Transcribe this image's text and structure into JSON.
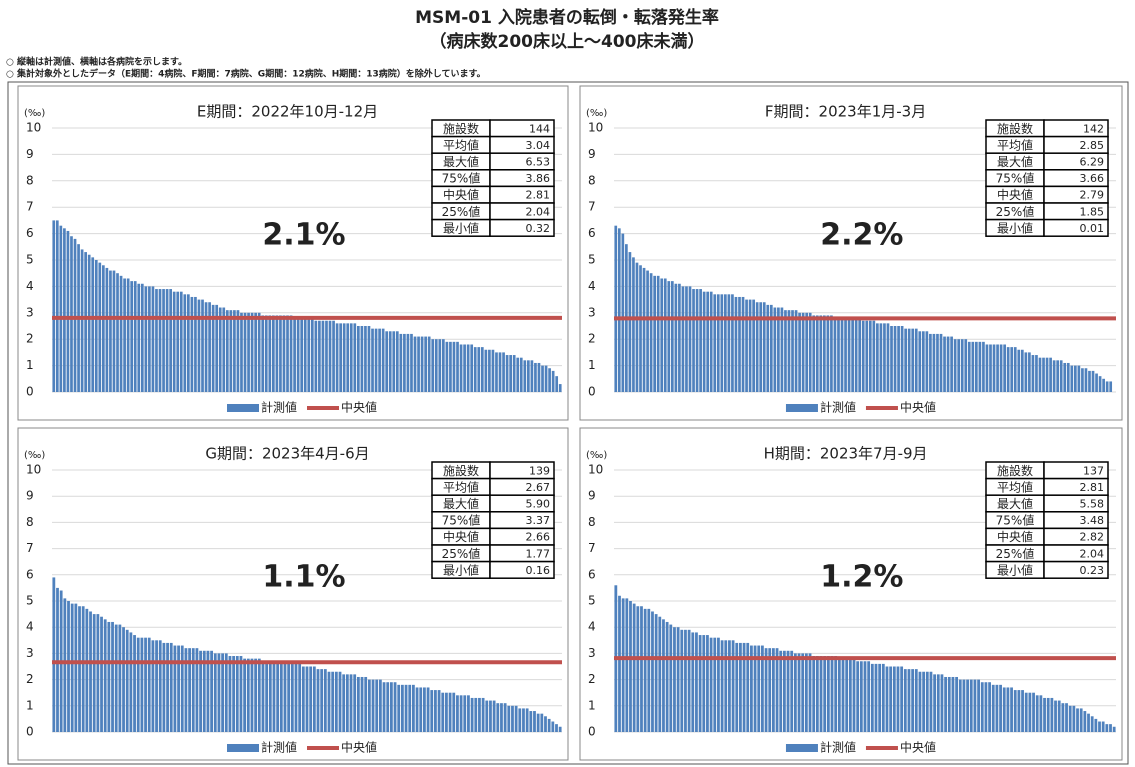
{
  "title": "MSM-01 入院患者の転倒・転落発生率",
  "subtitle": "（病床数200床以上～400床未満）",
  "notes": [
    "○ 縦軸は計測値、横軸は各病院を示します。",
    "○ 集計対象外としたデータ（E期間：4病院、F期間：7病院、G期間：12病院、H期間：13病院）を除外しています。"
  ],
  "chart_data": [
    {
      "type": "bar",
      "title": "E期間：2022年10月-12月",
      "unit": "(‰)",
      "annotation": "2.1%",
      "ylim": [
        0,
        10
      ],
      "yticks": [
        0,
        1,
        2,
        3,
        4,
        5,
        6,
        7,
        8,
        9,
        10
      ],
      "grid": true,
      "stats": [
        {
          "label": "施設数",
          "value": "144"
        },
        {
          "label": "平均値",
          "value": "3.04"
        },
        {
          "label": "最大値",
          "value": "6.53"
        },
        {
          "label": "75%値",
          "value": "3.86"
        },
        {
          "label": "中央値",
          "value": "2.81"
        },
        {
          "label": "25%値",
          "value": "2.04"
        },
        {
          "label": "最小値",
          "value": "0.32"
        }
      ],
      "series": [
        {
          "name": "計測値",
          "color": "#4f81bd",
          "values": [
            6.5,
            6.5,
            6.3,
            6.2,
            6.1,
            5.9,
            5.8,
            5.6,
            5.4,
            5.3,
            5.2,
            5.1,
            5.0,
            4.9,
            4.8,
            4.7,
            4.6,
            4.6,
            4.5,
            4.4,
            4.3,
            4.3,
            4.2,
            4.2,
            4.1,
            4.1,
            4.0,
            4.0,
            4.0,
            3.9,
            3.9,
            3.9,
            3.9,
            3.9,
            3.8,
            3.8,
            3.8,
            3.7,
            3.7,
            3.6,
            3.6,
            3.5,
            3.5,
            3.4,
            3.4,
            3.3,
            3.3,
            3.2,
            3.2,
            3.1,
            3.1,
            3.1,
            3.1,
            3.0,
            3.0,
            3.0,
            3.0,
            3.0,
            3.0,
            2.9,
            2.9,
            2.9,
            2.9,
            2.9,
            2.9,
            2.9,
            2.9,
            2.9,
            2.8,
            2.8,
            2.8,
            2.8,
            2.8,
            2.8,
            2.7,
            2.7,
            2.7,
            2.7,
            2.7,
            2.7,
            2.6,
            2.6,
            2.6,
            2.6,
            2.6,
            2.6,
            2.5,
            2.5,
            2.5,
            2.5,
            2.4,
            2.4,
            2.4,
            2.4,
            2.3,
            2.3,
            2.3,
            2.3,
            2.2,
            2.2,
            2.2,
            2.2,
            2.1,
            2.1,
            2.1,
            2.1,
            2.1,
            2.0,
            2.0,
            2.0,
            2.0,
            1.9,
            1.9,
            1.9,
            1.9,
            1.8,
            1.8,
            1.8,
            1.8,
            1.7,
            1.7,
            1.7,
            1.6,
            1.6,
            1.6,
            1.5,
            1.5,
            1.5,
            1.4,
            1.4,
            1.4,
            1.3,
            1.3,
            1.2,
            1.2,
            1.2,
            1.1,
            1.1,
            1.0,
            1.0,
            0.9,
            0.8,
            0.6,
            0.3
          ]
        },
        {
          "name": "中央値",
          "color": "#c0504d",
          "value": 2.81
        }
      ]
    },
    {
      "type": "bar",
      "title": "F期間：2023年1月-3月",
      "unit": "(‰)",
      "annotation": "2.2%",
      "ylim": [
        0,
        10
      ],
      "yticks": [
        0,
        1,
        2,
        3,
        4,
        5,
        6,
        7,
        8,
        9,
        10
      ],
      "grid": true,
      "stats": [
        {
          "label": "施設数",
          "value": "142"
        },
        {
          "label": "平均値",
          "value": "2.85"
        },
        {
          "label": "最大値",
          "value": "6.29"
        },
        {
          "label": "75%値",
          "value": "3.66"
        },
        {
          "label": "中央値",
          "value": "2.79"
        },
        {
          "label": "25%値",
          "value": "1.85"
        },
        {
          "label": "最小値",
          "value": "0.01"
        }
      ],
      "series": [
        {
          "name": "計測値",
          "color": "#4f81bd",
          "values": [
            6.3,
            6.2,
            6.0,
            5.6,
            5.3,
            5.1,
            4.9,
            4.8,
            4.7,
            4.6,
            4.5,
            4.4,
            4.4,
            4.3,
            4.3,
            4.2,
            4.2,
            4.1,
            4.1,
            4.0,
            4.0,
            4.0,
            3.9,
            3.9,
            3.9,
            3.8,
            3.8,
            3.8,
            3.7,
            3.7,
            3.7,
            3.7,
            3.7,
            3.7,
            3.6,
            3.6,
            3.6,
            3.5,
            3.5,
            3.5,
            3.4,
            3.4,
            3.4,
            3.3,
            3.3,
            3.2,
            3.2,
            3.2,
            3.1,
            3.1,
            3.1,
            3.1,
            3.0,
            3.0,
            3.0,
            3.0,
            2.9,
            2.9,
            2.9,
            2.9,
            2.9,
            2.9,
            2.8,
            2.8,
            2.8,
            2.8,
            2.8,
            2.8,
            2.8,
            2.8,
            2.7,
            2.7,
            2.7,
            2.7,
            2.6,
            2.6,
            2.6,
            2.6,
            2.5,
            2.5,
            2.5,
            2.5,
            2.4,
            2.4,
            2.4,
            2.4,
            2.3,
            2.3,
            2.3,
            2.2,
            2.2,
            2.2,
            2.2,
            2.1,
            2.1,
            2.1,
            2.0,
            2.0,
            2.0,
            2.0,
            1.9,
            1.9,
            1.9,
            1.9,
            1.9,
            1.8,
            1.8,
            1.8,
            1.8,
            1.8,
            1.8,
            1.7,
            1.7,
            1.7,
            1.6,
            1.6,
            1.5,
            1.5,
            1.4,
            1.4,
            1.3,
            1.3,
            1.3,
            1.3,
            1.2,
            1.2,
            1.2,
            1.1,
            1.1,
            1.0,
            1.0,
            1.0,
            0.9,
            0.9,
            0.8,
            0.8,
            0.7,
            0.6,
            0.5,
            0.4,
            0.4,
            0.0
          ]
        },
        {
          "name": "中央値",
          "color": "#c0504d",
          "value": 2.79
        }
      ]
    },
    {
      "type": "bar",
      "title": "G期間：2023年4月-6月",
      "unit": "(‰)",
      "annotation": "1.1%",
      "ylim": [
        0,
        10
      ],
      "yticks": [
        0,
        1,
        2,
        3,
        4,
        5,
        6,
        7,
        8,
        9,
        10
      ],
      "grid": true,
      "stats": [
        {
          "label": "施設数",
          "value": "139"
        },
        {
          "label": "平均値",
          "value": "2.67"
        },
        {
          "label": "最大値",
          "value": "5.90"
        },
        {
          "label": "75%値",
          "value": "3.37"
        },
        {
          "label": "中央値",
          "value": "2.66"
        },
        {
          "label": "25%値",
          "value": "1.77"
        },
        {
          "label": "最小値",
          "value": "0.16"
        }
      ],
      "series": [
        {
          "name": "計測値",
          "color": "#4f81bd",
          "values": [
            5.9,
            5.5,
            5.4,
            5.1,
            5.0,
            4.9,
            4.9,
            4.8,
            4.8,
            4.7,
            4.6,
            4.5,
            4.5,
            4.4,
            4.3,
            4.2,
            4.2,
            4.1,
            4.1,
            4.0,
            3.9,
            3.8,
            3.7,
            3.6,
            3.6,
            3.6,
            3.6,
            3.5,
            3.5,
            3.5,
            3.4,
            3.4,
            3.4,
            3.3,
            3.3,
            3.3,
            3.2,
            3.2,
            3.2,
            3.2,
            3.1,
            3.1,
            3.1,
            3.1,
            3.0,
            3.0,
            3.0,
            3.0,
            2.9,
            2.9,
            2.9,
            2.9,
            2.8,
            2.8,
            2.8,
            2.8,
            2.8,
            2.7,
            2.7,
            2.7,
            2.7,
            2.7,
            2.7,
            2.7,
            2.6,
            2.6,
            2.6,
            2.6,
            2.5,
            2.5,
            2.5,
            2.5,
            2.4,
            2.4,
            2.4,
            2.3,
            2.3,
            2.3,
            2.3,
            2.2,
            2.2,
            2.2,
            2.2,
            2.1,
            2.1,
            2.1,
            2.0,
            2.0,
            2.0,
            2.0,
            1.9,
            1.9,
            1.9,
            1.9,
            1.8,
            1.8,
            1.8,
            1.8,
            1.8,
            1.7,
            1.7,
            1.7,
            1.7,
            1.6,
            1.6,
            1.6,
            1.5,
            1.5,
            1.5,
            1.5,
            1.4,
            1.4,
            1.4,
            1.4,
            1.3,
            1.3,
            1.3,
            1.3,
            1.2,
            1.2,
            1.2,
            1.1,
            1.1,
            1.1,
            1.0,
            1.0,
            1.0,
            0.9,
            0.9,
            0.9,
            0.8,
            0.8,
            0.7,
            0.7,
            0.6,
            0.5,
            0.4,
            0.3,
            0.2
          ]
        },
        {
          "name": "中央値",
          "color": "#c0504d",
          "value": 2.66
        }
      ]
    },
    {
      "type": "bar",
      "title": "H期間：2023年7月-9月",
      "unit": "(‰)",
      "annotation": "1.2%",
      "ylim": [
        0,
        10
      ],
      "yticks": [
        0,
        1,
        2,
        3,
        4,
        5,
        6,
        7,
        8,
        9,
        10
      ],
      "grid": true,
      "stats": [
        {
          "label": "施設数",
          "value": "137"
        },
        {
          "label": "平均値",
          "value": "2.81"
        },
        {
          "label": "最大値",
          "value": "5.58"
        },
        {
          "label": "75%値",
          "value": "3.48"
        },
        {
          "label": "中央値",
          "value": "2.82"
        },
        {
          "label": "25%値",
          "value": "2.04"
        },
        {
          "label": "最小値",
          "value": "0.23"
        }
      ],
      "series": [
        {
          "name": "計測値",
          "color": "#4f81bd",
          "values": [
            5.6,
            5.2,
            5.1,
            5.1,
            5.0,
            4.9,
            4.8,
            4.8,
            4.7,
            4.7,
            4.6,
            4.5,
            4.4,
            4.3,
            4.2,
            4.1,
            4.0,
            4.0,
            3.9,
            3.9,
            3.9,
            3.8,
            3.8,
            3.7,
            3.7,
            3.7,
            3.6,
            3.6,
            3.6,
            3.5,
            3.5,
            3.5,
            3.5,
            3.4,
            3.4,
            3.4,
            3.4,
            3.3,
            3.3,
            3.3,
            3.3,
            3.2,
            3.2,
            3.2,
            3.2,
            3.1,
            3.1,
            3.1,
            3.1,
            3.0,
            3.0,
            3.0,
            3.0,
            3.0,
            2.9,
            2.9,
            2.9,
            2.9,
            2.9,
            2.9,
            2.9,
            2.8,
            2.8,
            2.8,
            2.8,
            2.8,
            2.7,
            2.7,
            2.7,
            2.7,
            2.6,
            2.6,
            2.6,
            2.6,
            2.5,
            2.5,
            2.5,
            2.5,
            2.5,
            2.4,
            2.4,
            2.4,
            2.4,
            2.3,
            2.3,
            2.3,
            2.3,
            2.2,
            2.2,
            2.2,
            2.1,
            2.1,
            2.1,
            2.1,
            2.0,
            2.0,
            2.0,
            2.0,
            2.0,
            2.0,
            1.9,
            1.9,
            1.9,
            1.8,
            1.8,
            1.8,
            1.7,
            1.7,
            1.7,
            1.6,
            1.6,
            1.6,
            1.5,
            1.5,
            1.5,
            1.4,
            1.4,
            1.3,
            1.3,
            1.3,
            1.2,
            1.2,
            1.1,
            1.1,
            1.0,
            1.0,
            0.9,
            0.9,
            0.8,
            0.7,
            0.6,
            0.5,
            0.4,
            0.4,
            0.3,
            0.3,
            0.2
          ]
        },
        {
          "name": "中央値",
          "color": "#c0504d",
          "value": 2.82
        }
      ]
    }
  ]
}
